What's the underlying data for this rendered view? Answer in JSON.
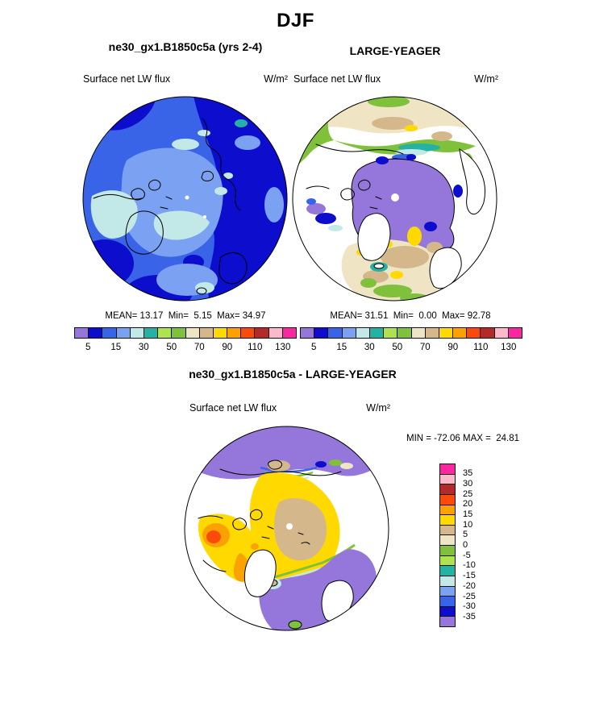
{
  "page": {
    "title": "DJF"
  },
  "panels": {
    "model": {
      "title": "ne30_gx1.B1850c5a (yrs 2-4)",
      "field_label": "Surface net LW flux",
      "units": "W/m²",
      "stats": "MEAN= 13.17  Min=  5.15  Max= 34.97",
      "ticks": [
        "5",
        "15",
        "30",
        "50",
        "70",
        "90",
        "110",
        "130"
      ]
    },
    "obs": {
      "title": "LARGE-YEAGER",
      "field_label": "Surface net LW flux",
      "units": "W/m²",
      "stats": "MEAN= 31.51  Min=  0.00  Max= 92.78",
      "ticks": [
        "5",
        "15",
        "30",
        "50",
        "70",
        "90",
        "110",
        "130"
      ]
    },
    "diff": {
      "title": "ne30_gx1.B1850c5a - LARGE-YEAGER",
      "field_label": "Surface net LW flux",
      "units": "W/m²",
      "minmax": "MIN = -72.06 MAX =  24.81",
      "ticks": [
        "35",
        "30",
        "25",
        "20",
        "15",
        "10",
        "5",
        "0",
        "-5",
        "-10",
        "-15",
        "-20",
        "-25",
        "-30",
        "-35"
      ]
    }
  },
  "palette": [
    "#9577DB",
    "#0D0DCE",
    "#3A64E8",
    "#7BA2F2",
    "#C3E8E8",
    "#23B2A4",
    "#AEE24F",
    "#7FC13B",
    "#EFE5C4",
    "#D4B88C",
    "#FFD900",
    "#FBA202",
    "#FB4A0A",
    "#B42A2A",
    "#FBB9CB",
    "#FA28A0"
  ],
  "chart_data": [
    {
      "type": "heatmap",
      "subtype": "filled-contour-polar-map",
      "projection": "north-polar-stereographic",
      "season": "DJF",
      "title": "ne30_gx1.B1850c5a (yrs 2-4)",
      "variable": "Surface net LW flux",
      "units": "W/m²",
      "stats": {
        "mean": 13.17,
        "min": 5.15,
        "max": 34.97
      },
      "contour_levels": [
        5,
        10,
        15,
        20,
        30,
        40,
        50,
        60,
        70,
        80,
        90,
        100,
        110,
        120,
        130
      ],
      "labeled_ticks": [
        5,
        15,
        30,
        50,
        70,
        90,
        110,
        130
      ],
      "legend_position": "bottom",
      "notes": "Arctic polar cap; whole field in blue range 5-35: dark blue (5-10) over Siberian/Atlantic sectors, royal blue (10-15) background, light blue (15-20) central Arctic, pale cyan (20-30) over Alaska and central strips, tiny teal (30-40) speck near top-right edge; white pole dot at center"
    },
    {
      "type": "heatmap",
      "subtype": "filled-contour-polar-map",
      "projection": "north-polar-stereographic",
      "season": "DJF",
      "title": "LARGE-YEAGER",
      "variable": "Surface net LW flux",
      "units": "W/m²",
      "stats": {
        "mean": 31.51,
        "min": 0.0,
        "max": 92.78
      },
      "contour_levels": [
        5,
        10,
        15,
        20,
        30,
        40,
        50,
        60,
        70,
        80,
        90,
        100,
        110,
        120,
        130
      ],
      "labeled_ticks": [
        5,
        15,
        30,
        50,
        70,
        90,
        110,
        130
      ],
      "legend_position": "bottom",
      "notes": "Ocean-only observations, land masked white; purple (<5) sea-ice pack at center, green/cream/tan/yellow (40-90) bands over North Pacific top arc and North Atlantic bottom, dark blue blobs in Baffin Bay and along ice edge, teal/cyan transition fringes; large white pole dot"
    },
    {
      "type": "heatmap",
      "subtype": "filled-contour-polar-map-difference",
      "projection": "north-polar-stereographic",
      "season": "DJF",
      "title": "ne30_gx1.B1850c5a - LARGE-YEAGER",
      "variable": "Surface net LW flux",
      "units": "W/m²",
      "stats": {
        "min": -72.06,
        "max": 24.81
      },
      "contour_levels": [
        -35,
        -30,
        -25,
        -20,
        -15,
        -10,
        -5,
        0,
        5,
        10,
        15,
        20,
        25,
        30,
        35
      ],
      "legend_position": "right",
      "notes": "Difference map: tan (+5..10) over central Arctic surrounded by yellow (+10..15), orange/red (+15..25) blobs near Baffin Bay, purple (<-35) over North Pacific top band and North Atlantic/Norwegian Sea, thin green/cyan/blue transition bands, land masked white; white pole dot"
    }
  ]
}
